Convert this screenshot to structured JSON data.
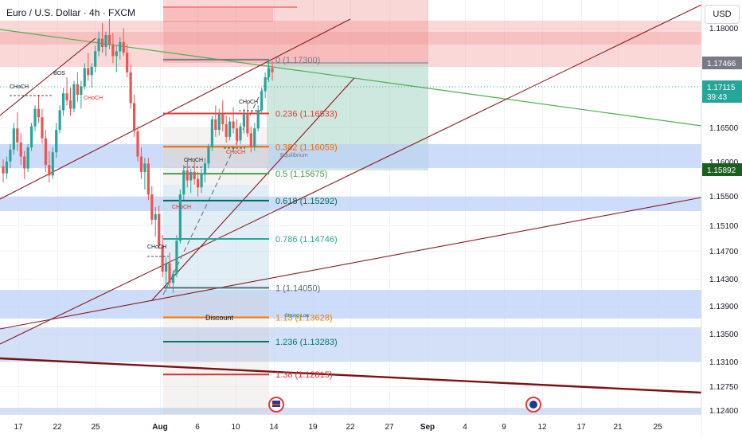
{
  "header": {
    "title": "Euro / U.S. Dollar · 4h · FXCM",
    "currency": "USD"
  },
  "colors": {
    "background": "#ffffff",
    "up_candle": "#26a69a",
    "down_candle": "#ef5350",
    "trendline_dark_red": "#7b1113",
    "trendline_green": "#4caf50",
    "supply_zone": "#f7a9a9",
    "demand_zone": "#bcd0f5",
    "price_tag_gray": "#787b86",
    "price_tag_dark_green": "#1b5e20"
  },
  "chart_data": {
    "type": "candlestick",
    "title": "Euro / U.S. Dollar · 4h · FXCM",
    "ylim": [
      1.1225,
      1.1815
    ],
    "y_ticks": [
      "1.18000",
      "1.16500",
      "1.16000",
      "1.15500",
      "1.15100",
      "1.14700",
      "1.14300",
      "1.13900",
      "1.13500",
      "1.13100",
      "1.12750",
      "1.12400"
    ],
    "x_ticks": [
      "17",
      "22",
      "25",
      "Aug",
      "6",
      "10",
      "14",
      "19",
      "22",
      "27",
      "Sep",
      "4",
      "9",
      "12",
      "17",
      "21",
      "25"
    ],
    "price_tags": [
      {
        "label": "1.17466",
        "value": 1.17466,
        "style": "gray"
      },
      {
        "label": "1.17115",
        "sublabel": "39:43",
        "value": 1.17115,
        "style": "green"
      },
      {
        "label": "1.15892",
        "value": 1.15892,
        "style": "dark-green"
      }
    ],
    "fibonacci_levels": [
      {
        "ratio": "0",
        "price": 1.173,
        "label": "0 (1.17300)",
        "color": "#787b86"
      },
      {
        "ratio": "0.236",
        "price": 1.16533,
        "label": "0.236 (1.16533)",
        "color": "#e53935"
      },
      {
        "ratio": "0.382",
        "price": 1.16059,
        "label": "0.382 (1.16059)",
        "color": "#ef6c00"
      },
      {
        "ratio": "0.5",
        "price": 1.15675,
        "label": "0.5 (1.15675)",
        "color": "#43a047"
      },
      {
        "ratio": "0.618",
        "price": 1.15292,
        "label": "0.618 (1.15292)",
        "color": "#00695c"
      },
      {
        "ratio": "0.786",
        "price": 1.14746,
        "label": "0.786 (1.14746)",
        "color": "#26a69a"
      },
      {
        "ratio": "1",
        "price": 1.1405,
        "label": "1 (1.14050)",
        "color": "#546e7a"
      },
      {
        "ratio": "1.13",
        "price": 1.13628,
        "label": "1.13 (1.13628)",
        "color": "#f57c00"
      },
      {
        "ratio": "1.236",
        "price": 1.13283,
        "label": "1.236 (1.13283)",
        "color": "#00796b"
      },
      {
        "ratio": "1.38",
        "price": 1.12815,
        "label": "1.38 (1.12815)",
        "color": "#d32f2f"
      }
    ],
    "annotations": [
      "BOS",
      "CHoCH",
      "CHoCH",
      "CHoCH",
      "CHoCH",
      "CHoCH",
      "CHoCH",
      "CHoCH",
      "Equilibrium",
      "Discount",
      "Strong Low"
    ],
    "candles": [
      [
        1.1578,
        1.1588,
        1.1555,
        1.1568
      ],
      [
        1.1568,
        1.1592,
        1.156,
        1.1585
      ],
      [
        1.1585,
        1.161,
        1.1575,
        1.1602
      ],
      [
        1.1602,
        1.164,
        1.1595,
        1.1632
      ],
      [
        1.1632,
        1.1655,
        1.16,
        1.1612
      ],
      [
        1.1612,
        1.1625,
        1.158,
        1.1592
      ],
      [
        1.1592,
        1.16,
        1.156,
        1.1575
      ],
      [
        1.1575,
        1.161,
        1.157,
        1.1605
      ],
      [
        1.1605,
        1.164,
        1.16,
        1.1635
      ],
      [
        1.1635,
        1.1665,
        1.1628,
        1.166
      ],
      [
        1.166,
        1.168,
        1.164,
        1.1648
      ],
      [
        1.1648,
        1.166,
        1.161,
        1.1618
      ],
      [
        1.1618,
        1.163,
        1.157,
        1.158
      ],
      [
        1.158,
        1.16,
        1.1555,
        1.1565
      ],
      [
        1.1565,
        1.1605,
        1.156,
        1.1598
      ],
      [
        1.1598,
        1.164,
        1.159,
        1.163
      ],
      [
        1.163,
        1.1665,
        1.1625,
        1.1658
      ],
      [
        1.1658,
        1.169,
        1.165,
        1.1682
      ],
      [
        1.1682,
        1.1705,
        1.1665,
        1.1672
      ],
      [
        1.1672,
        1.169,
        1.165,
        1.166
      ],
      [
        1.166,
        1.17,
        1.1655,
        1.1695
      ],
      [
        1.1695,
        1.1712,
        1.167,
        1.168
      ],
      [
        1.168,
        1.17,
        1.166,
        1.1692
      ],
      [
        1.1692,
        1.1725,
        1.1688,
        1.1718
      ],
      [
        1.1718,
        1.174,
        1.17,
        1.1708
      ],
      [
        1.1708,
        1.1725,
        1.169,
        1.172
      ],
      [
        1.172,
        1.175,
        1.1712,
        1.1742
      ],
      [
        1.1742,
        1.177,
        1.1735,
        1.176
      ],
      [
        1.176,
        1.1782,
        1.174,
        1.1748
      ],
      [
        1.1748,
        1.177,
        1.1735,
        1.1765
      ],
      [
        1.1765,
        1.1788,
        1.1745,
        1.1752
      ],
      [
        1.1752,
        1.1768,
        1.1725,
        1.1735
      ],
      [
        1.1735,
        1.175,
        1.1712,
        1.1742
      ],
      [
        1.1742,
        1.1762,
        1.173,
        1.1755
      ],
      [
        1.1755,
        1.1775,
        1.1735,
        1.174
      ],
      [
        1.174,
        1.1752,
        1.1705,
        1.1712
      ],
      [
        1.1712,
        1.1722,
        1.166,
        1.1668
      ],
      [
        1.1668,
        1.168,
        1.162,
        1.1628
      ],
      [
        1.1628,
        1.1635,
        1.1585,
        1.1592
      ],
      [
        1.1592,
        1.1605,
        1.156,
        1.157
      ],
      [
        1.157,
        1.159,
        1.1545,
        1.1582
      ],
      [
        1.1582,
        1.159,
        1.153,
        1.1538
      ],
      [
        1.1538,
        1.155,
        1.1495,
        1.1502
      ],
      [
        1.1502,
        1.152,
        1.1478,
        1.151
      ],
      [
        1.151,
        1.1522,
        1.146,
        1.1465
      ],
      [
        1.1465,
        1.148,
        1.142,
        1.1428
      ],
      [
        1.1428,
        1.1448,
        1.14,
        1.144
      ],
      [
        1.144,
        1.1455,
        1.1405,
        1.1412
      ],
      [
        1.1412,
        1.143,
        1.1398,
        1.1425
      ],
      [
        1.1425,
        1.148,
        1.142,
        1.1472
      ],
      [
        1.1472,
        1.1545,
        1.1468,
        1.1538
      ],
      [
        1.1538,
        1.158,
        1.153,
        1.1572
      ],
      [
        1.1572,
        1.159,
        1.1548,
        1.1558
      ],
      [
        1.1558,
        1.1575,
        1.154,
        1.157
      ],
      [
        1.157,
        1.1585,
        1.1552,
        1.156
      ],
      [
        1.156,
        1.157,
        1.1535,
        1.1548
      ],
      [
        1.1548,
        1.1575,
        1.154,
        1.1568
      ],
      [
        1.1568,
        1.159,
        1.1555,
        1.1582
      ],
      [
        1.1582,
        1.161,
        1.1575,
        1.1605
      ],
      [
        1.1605,
        1.165,
        1.16,
        1.1645
      ],
      [
        1.1645,
        1.1665,
        1.162,
        1.163
      ],
      [
        1.163,
        1.166,
        1.1622,
        1.1652
      ],
      [
        1.1652,
        1.1672,
        1.1628,
        1.1638
      ],
      [
        1.1638,
        1.165,
        1.1612,
        1.162
      ],
      [
        1.162,
        1.1648,
        1.1615,
        1.1642
      ],
      [
        1.1642,
        1.1662,
        1.1625,
        1.1632
      ],
      [
        1.1632,
        1.1645,
        1.1608,
        1.1615
      ],
      [
        1.1615,
        1.164,
        1.161,
        1.1635
      ],
      [
        1.1635,
        1.166,
        1.1625,
        1.1652
      ],
      [
        1.1652,
        1.1668,
        1.162,
        1.1625
      ],
      [
        1.1625,
        1.1635,
        1.1598,
        1.1606
      ],
      [
        1.1606,
        1.164,
        1.16,
        1.1632
      ],
      [
        1.1632,
        1.1665,
        1.1628,
        1.1658
      ],
      [
        1.1658,
        1.169,
        1.1652,
        1.1685
      ],
      [
        1.1685,
        1.1712,
        1.1675,
        1.1705
      ],
      [
        1.1705,
        1.173,
        1.1698,
        1.1718
      ],
      [
        1.1718,
        1.1728,
        1.17,
        1.1712
      ]
    ]
  }
}
